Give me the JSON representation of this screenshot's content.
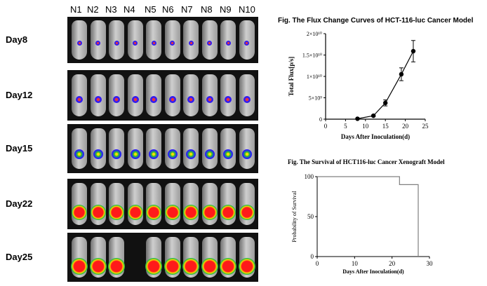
{
  "imaging": {
    "columns": [
      "N1",
      "N2",
      "N3",
      "N4",
      "N5",
      "N6",
      "N7",
      "N8",
      "N9",
      "N10"
    ],
    "rows": [
      {
        "label": "Day8",
        "level": 1
      },
      {
        "label": "Day12",
        "level": 2
      },
      {
        "label": "Day15",
        "level": 3
      },
      {
        "label": "Day22",
        "level": 4
      },
      {
        "label": "Day25",
        "level": 5
      }
    ]
  },
  "chart_data": [
    {
      "type": "line",
      "title": "Fig. The Flux Change Curves of HCT-116-luc Cancer  Model",
      "xlabel": "Days After Inoculation(d)",
      "ylabel": "Total Flux[p/s]",
      "xlim": [
        0,
        25
      ],
      "ylim": [
        0,
        20000000000
      ],
      "x_ticks": [
        "0",
        "5",
        "10",
        "15",
        "20",
        "25"
      ],
      "y_ticks": [
        "0",
        "5×10⁹",
        "1×10¹⁰",
        "1.5×10¹⁰",
        "2×10¹⁰"
      ],
      "series": [
        {
          "x": [
            8,
            12,
            15,
            19,
            22
          ],
          "values": [
            100000000,
            800000000,
            3800000000,
            10500000000,
            15900000000
          ],
          "errors": [
            50000000,
            200000000,
            700000000,
            1500000000,
            2500000000
          ]
        }
      ],
      "grid": false
    },
    {
      "type": "line",
      "title": "Fig. The Survival of HCT116-luc Cancer Xenograft Model",
      "xlabel": "Days After Inoculation(d)",
      "ylabel": "Probability of Survival",
      "xlim": [
        0,
        30
      ],
      "ylim": [
        0,
        100
      ],
      "x_ticks": [
        "0",
        "10",
        "20",
        "30"
      ],
      "y_ticks": [
        "0",
        "50",
        "100"
      ],
      "series": [
        {
          "step": true,
          "x": [
            0,
            22,
            22,
            27,
            27
          ],
          "values": [
            100,
            100,
            90,
            90,
            0
          ]
        }
      ],
      "grid": false
    }
  ],
  "colors": {
    "curve": "#000000",
    "survival": "#808080",
    "panel_bg": "#111111"
  }
}
